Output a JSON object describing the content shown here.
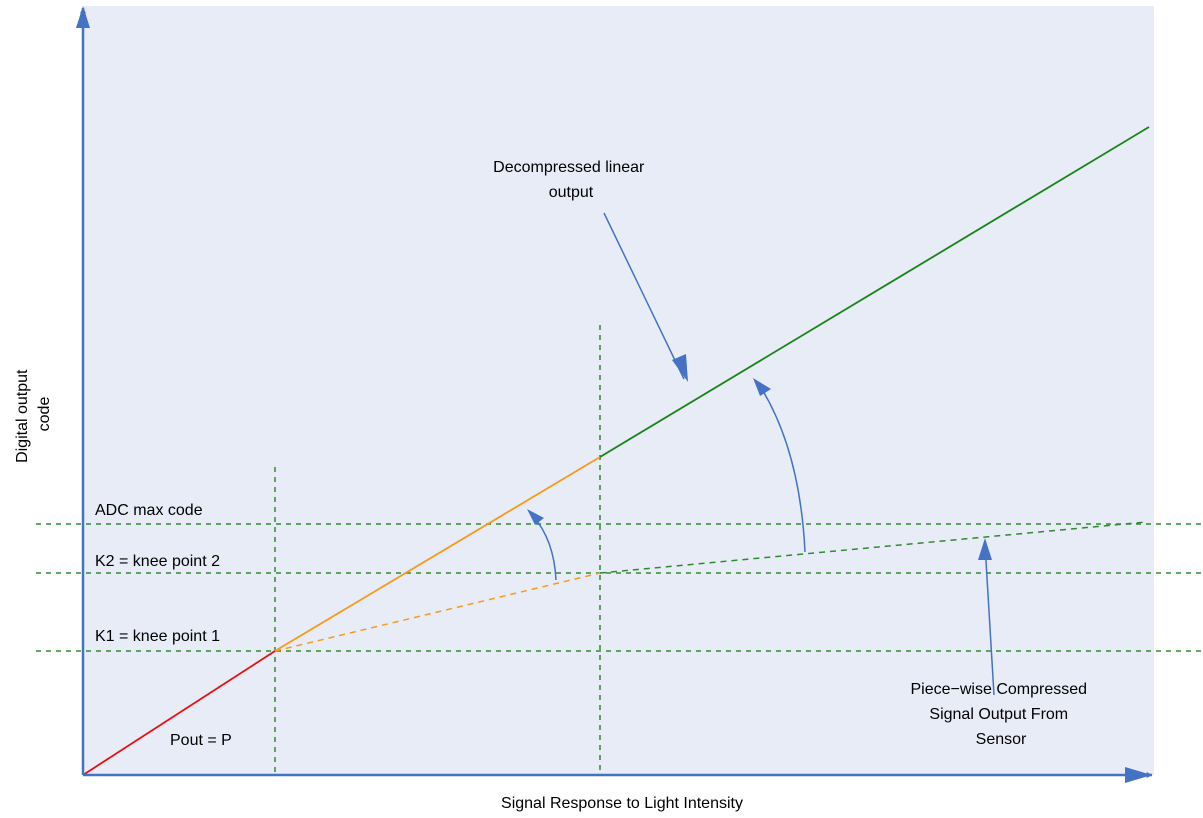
{
  "diagram": {
    "y_axis_label": [
      "Digital output",
      "code"
    ],
    "x_axis_label": "Signal Response to Light Intensity",
    "label_adc_max": "ADC max code",
    "label_k2": "K2 = knee point 2",
    "label_k1": "K1 = knee point 1",
    "label_pout": "Pout = P",
    "callout_decompressed": [
      "Decompressed linear",
      "output"
    ],
    "callout_piecewise": [
      "Piece−wise Compressed",
      "Signal Output From",
      "Sensor"
    ]
  },
  "colors": {
    "plot_background": "#E8ECF7",
    "axis": "#4472C4",
    "guide_line": "#2E8B2E",
    "segment_1": "#E81010",
    "segment_2": "#F59A1B",
    "segment_3": "#168416",
    "callout_arrow": "#4472C4"
  }
}
